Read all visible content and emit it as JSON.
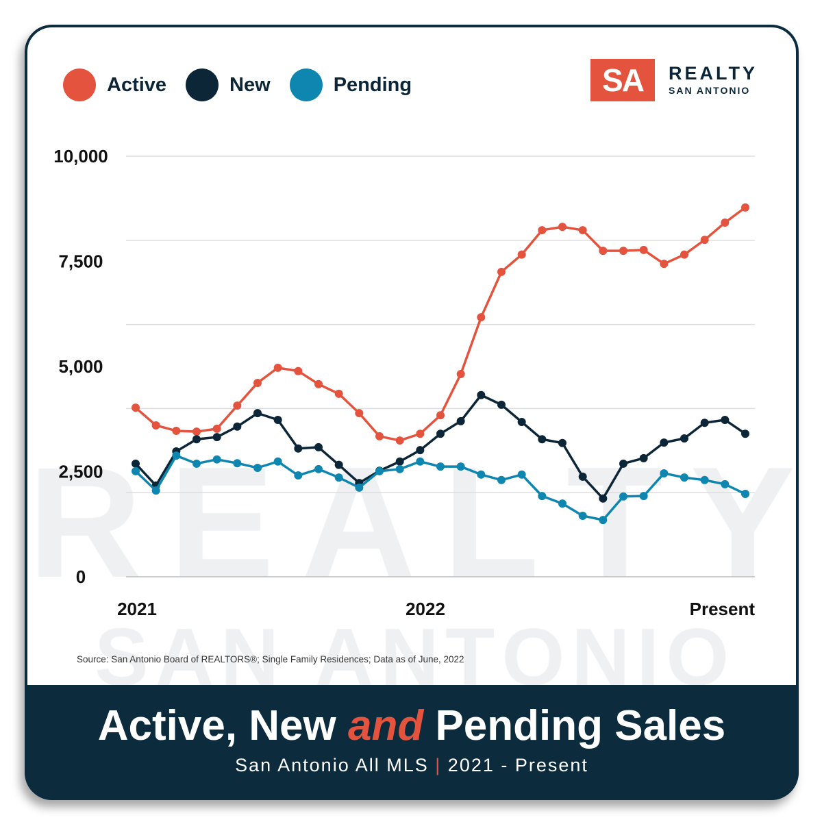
{
  "legend": [
    {
      "label": "Active",
      "color": "#e4533d"
    },
    {
      "label": "New",
      "color": "#0c2637"
    },
    {
      "label": "Pending",
      "color": "#0f86b0"
    }
  ],
  "logo": {
    "mark": "SA",
    "line1": "REALTY",
    "line2": "SAN ANTONIO"
  },
  "watermark": {
    "line1": "REALTY",
    "line2": "SAN ANTONIO"
  },
  "source": "Source: San Antonio Board of REALTORS®; Single Family Residences; Data as of June, 2022",
  "banner": {
    "title_a": "Active, New ",
    "title_and": "and",
    "title_b": " Pending Sales",
    "sub_a": "San Antonio All MLS",
    "sub_sep": "|",
    "sub_b": "2021 - Present"
  },
  "chart_data": {
    "type": "line",
    "ylim": [
      0,
      10000
    ],
    "yticks": [
      {
        "value": 0,
        "label": "0"
      },
      {
        "value": 2500,
        "label": "2,500"
      },
      {
        "value": 5000,
        "label": "5,000"
      },
      {
        "value": 7500,
        "label": "7,500"
      },
      {
        "value": 10000,
        "label": "10,000"
      }
    ],
    "xticks": [
      {
        "index": 0,
        "label": "2021"
      },
      {
        "index": 14,
        "label": "2022"
      },
      {
        "index": 30,
        "label": "Present"
      }
    ],
    "grid": true,
    "legend_position": "top-left",
    "series": [
      {
        "name": "Active",
        "color": "#e4533d",
        "values": [
          4020,
          3600,
          3470,
          3450,
          3520,
          4070,
          4610,
          4970,
          4890,
          4580,
          4350,
          3890,
          3340,
          3240,
          3400,
          3840,
          4820,
          6170,
          7250,
          7660,
          8240,
          8320,
          8240,
          7750,
          7750,
          7770,
          7440,
          7660,
          8010,
          8420,
          8780
        ]
      },
      {
        "name": "New",
        "color": "#0c2637",
        "values": [
          2690,
          2170,
          2980,
          3270,
          3320,
          3570,
          3890,
          3730,
          3050,
          3080,
          2660,
          2230,
          2520,
          2740,
          3010,
          3400,
          3700,
          4320,
          4090,
          3680,
          3270,
          3180,
          2380,
          1860,
          2690,
          2820,
          3190,
          3290,
          3660,
          3730,
          3400
        ]
      },
      {
        "name": "Pending",
        "color": "#0f86b0",
        "values": [
          2510,
          2050,
          2880,
          2690,
          2790,
          2700,
          2590,
          2740,
          2410,
          2560,
          2360,
          2120,
          2510,
          2560,
          2740,
          2620,
          2620,
          2430,
          2300,
          2430,
          1920,
          1740,
          1450,
          1350,
          1910,
          1920,
          2460,
          2360,
          2300,
          2200,
          1970
        ]
      }
    ]
  }
}
